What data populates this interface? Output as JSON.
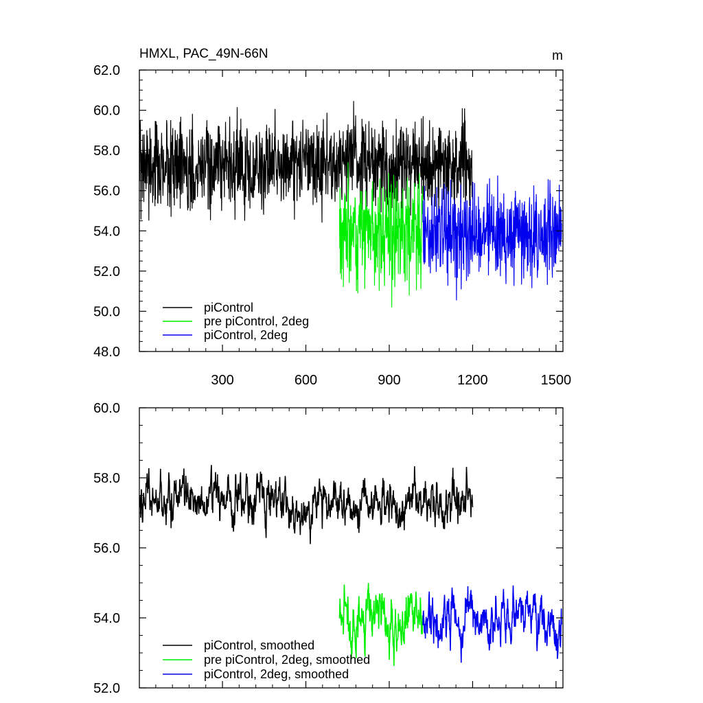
{
  "figure": {
    "title": "HMXL, PAC_49N-66N",
    "units": "m"
  },
  "chart_data": [
    {
      "type": "line",
      "name": "top-panel",
      "xlim": [
        1,
        1525
      ],
      "ylim": [
        48.0,
        62.0
      ],
      "xticks": [
        300,
        600,
        900,
        1200,
        1500
      ],
      "xtick_labels": [
        "300",
        "600",
        "900",
        "1200",
        "1500"
      ],
      "yticks": [
        48.0,
        50.0,
        52.0,
        54.0,
        56.0,
        58.0,
        60.0,
        62.0
      ],
      "ytick_labels": [
        "48.0",
        "50.0",
        "52.0",
        "54.0",
        "56.0",
        "58.0",
        "60.0",
        "62.0"
      ],
      "legend_position": "bottom-left",
      "series": [
        {
          "name": "piControl",
          "color": "#000000",
          "start": 1,
          "end": 1200,
          "mean": 57.3,
          "amplitude": 1.4,
          "seed": 11
        },
        {
          "name": "pre piControl, 2deg",
          "color": "#00ee00",
          "start": 721,
          "end": 1020,
          "mean": 54.0,
          "amplitude": 1.6,
          "seed": 23
        },
        {
          "name": "piControl, 2deg",
          "color": "#0000ee",
          "start": 1021,
          "end": 1520,
          "mean": 53.9,
          "amplitude": 1.5,
          "seed": 37
        }
      ]
    },
    {
      "type": "line",
      "name": "bottom-panel",
      "xlim": [
        1,
        1525
      ],
      "ylim": [
        52.0,
        60.0
      ],
      "xticks": [
        300,
        600,
        900,
        1200,
        1500
      ],
      "yticks": [
        52.0,
        54.0,
        56.0,
        58.0,
        60.0
      ],
      "ytick_labels": [
        "52.0",
        "54.0",
        "56.0",
        "58.0",
        "60.0"
      ],
      "legend_position": "bottom-left",
      "series": [
        {
          "name": "piControl, smoothed",
          "color": "#000000",
          "start": 1,
          "end": 1200,
          "mean": 57.3,
          "amplitude": 0.55,
          "seed": 11
        },
        {
          "name": "pre piControl, 2deg, smoothed",
          "color": "#00ee00",
          "start": 721,
          "end": 1020,
          "mean": 54.0,
          "amplitude": 0.65,
          "seed": 23
        },
        {
          "name": "piControl, 2deg, smoothed",
          "color": "#0000ee",
          "start": 1021,
          "end": 1520,
          "mean": 53.9,
          "amplitude": 0.55,
          "seed": 37
        }
      ]
    }
  ]
}
